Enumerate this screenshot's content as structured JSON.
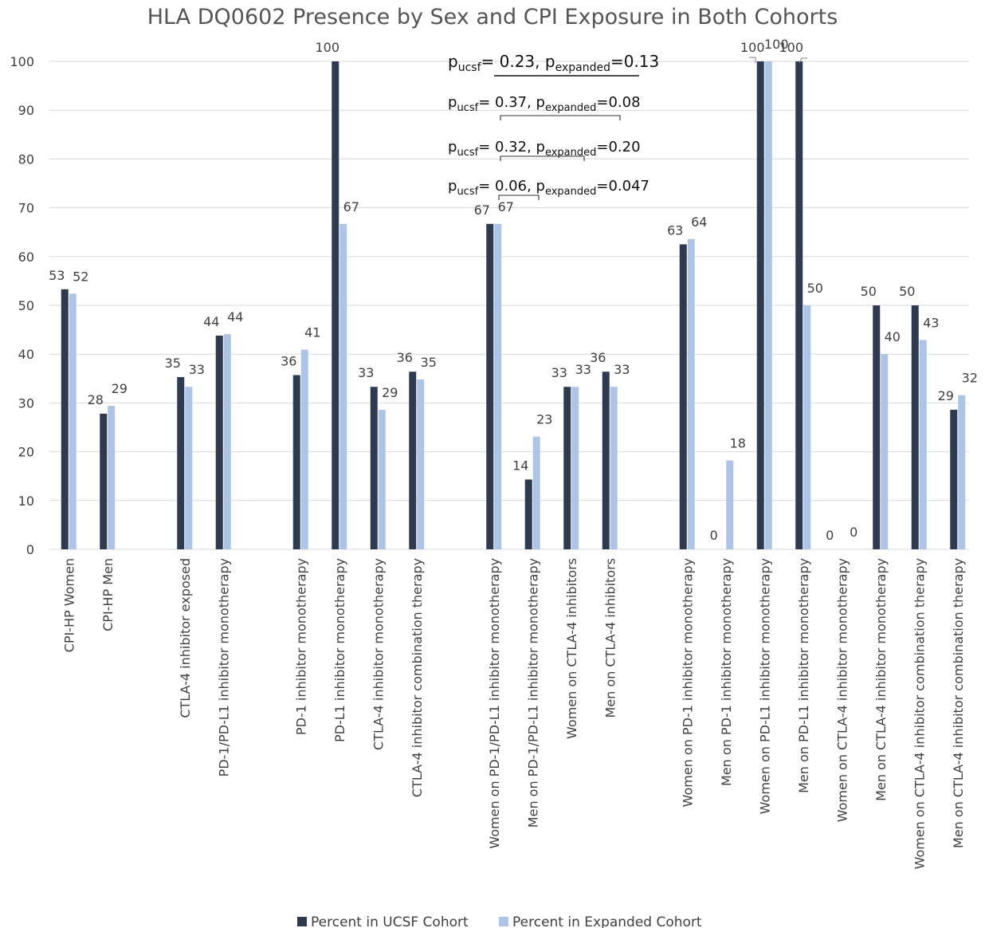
{
  "chart_data": {
    "type": "bar",
    "title": "HLA DQ0602 Presence by Sex and CPI Exposure in Both Cohorts",
    "xlabel": "",
    "ylabel": "",
    "ylim": [
      0,
      100
    ],
    "yticks": [
      0,
      10,
      20,
      30,
      40,
      50,
      60,
      70,
      80,
      90,
      100
    ],
    "grid": true,
    "legend_position": "bottom",
    "colors": {
      "ucsf": "#2d3a4f",
      "expanded": "#aec4e6",
      "grid": "#d9d9d9"
    },
    "groups": [
      {
        "categories": [
          "CPI-HP Women",
          "CPI-HP Men"
        ]
      },
      {
        "categories": [
          "CTLA-4 inhibitor exposed",
          "PD-1/PD-L1 inhibitor monotherapy"
        ]
      },
      {
        "categories": [
          "PD-1 inhibitor monotherapy",
          "PD-L1 inhibitor monotherapy",
          "CTLA-4 inhibitor monotherapy",
          "CTLA-4 inhibitor combination therapy"
        ]
      },
      {
        "categories": [
          "Women on PD-1/PD-L1 inhibitor monotherapy",
          "Men on PD-1/PD-L1 inhibitor monotherapy",
          "Women on CTLA-4 inhibitors",
          "Men on CTLA-4 inhibitors"
        ]
      },
      {
        "categories": [
          "Women on PD-1 inhibitor monotherapy",
          "Men on PD-1 inhibitor monotherapy",
          "Women on PD-L1 inhibitor monotherapy",
          "Men on PD-L1 inhibitor monotherapy",
          "Women on CTLA-4 inhibitor monotherapy",
          "Men on CTLA-4 inhibitor monotherapy",
          "Women on CTLA-4 inhibitor combination therapy",
          "Men on CTLA-4 inhibitor combination therapy"
        ]
      }
    ],
    "series": [
      {
        "name": "Percent in UCSF Cohort",
        "values": [
          53.3,
          27.8,
          35.3,
          43.8,
          35.7,
          100,
          33.3,
          36.4,
          66.7,
          14.3,
          33.3,
          36.4,
          62.5,
          0,
          100,
          100,
          0,
          50,
          50,
          28.6
        ],
        "labels": [
          "53",
          "28",
          "35",
          "44",
          "36",
          "100",
          "33",
          "36",
          "67",
          "14",
          "33",
          "36",
          "63",
          "0",
          "100",
          "100",
          "0",
          "50",
          "50",
          "29"
        ]
      },
      {
        "name": "Percent in Expanded Cohort",
        "values": [
          52.4,
          29.4,
          33.3,
          44.1,
          40.9,
          66.7,
          28.6,
          34.8,
          66.7,
          23.1,
          33.3,
          33.3,
          63.6,
          18.2,
          100,
          50,
          0,
          40,
          42.9,
          31.6
        ],
        "labels": [
          "52",
          "29",
          "33",
          "44",
          "41",
          "67",
          "29",
          "35",
          "67",
          "23",
          "33",
          "33",
          "64",
          "18",
          "100",
          "50",
          "0",
          "40",
          "43",
          "32"
        ]
      }
    ],
    "annotations": [
      {
        "p1": "p",
        "s1": "ucsf",
        "v1": "= 0.23, ",
        "p2": "p",
        "s2": "expanded",
        "v2": "=0.13"
      },
      {
        "p1": "p",
        "s1": "ucsf",
        "v1": "= 0.37, ",
        "p2": "p",
        "s2": "expanded",
        "v2": "=0.08"
      },
      {
        "p1": "p",
        "s1": "ucsf",
        "v1": "= 0.32, ",
        "p2": "p",
        "s2": "expanded",
        "v2": "=0.20"
      },
      {
        "p1": "p",
        "s1": "ucsf",
        "v1": "= 0.06, ",
        "p2": "p",
        "s2": "expanded",
        "v2": "=0.047"
      }
    ]
  }
}
